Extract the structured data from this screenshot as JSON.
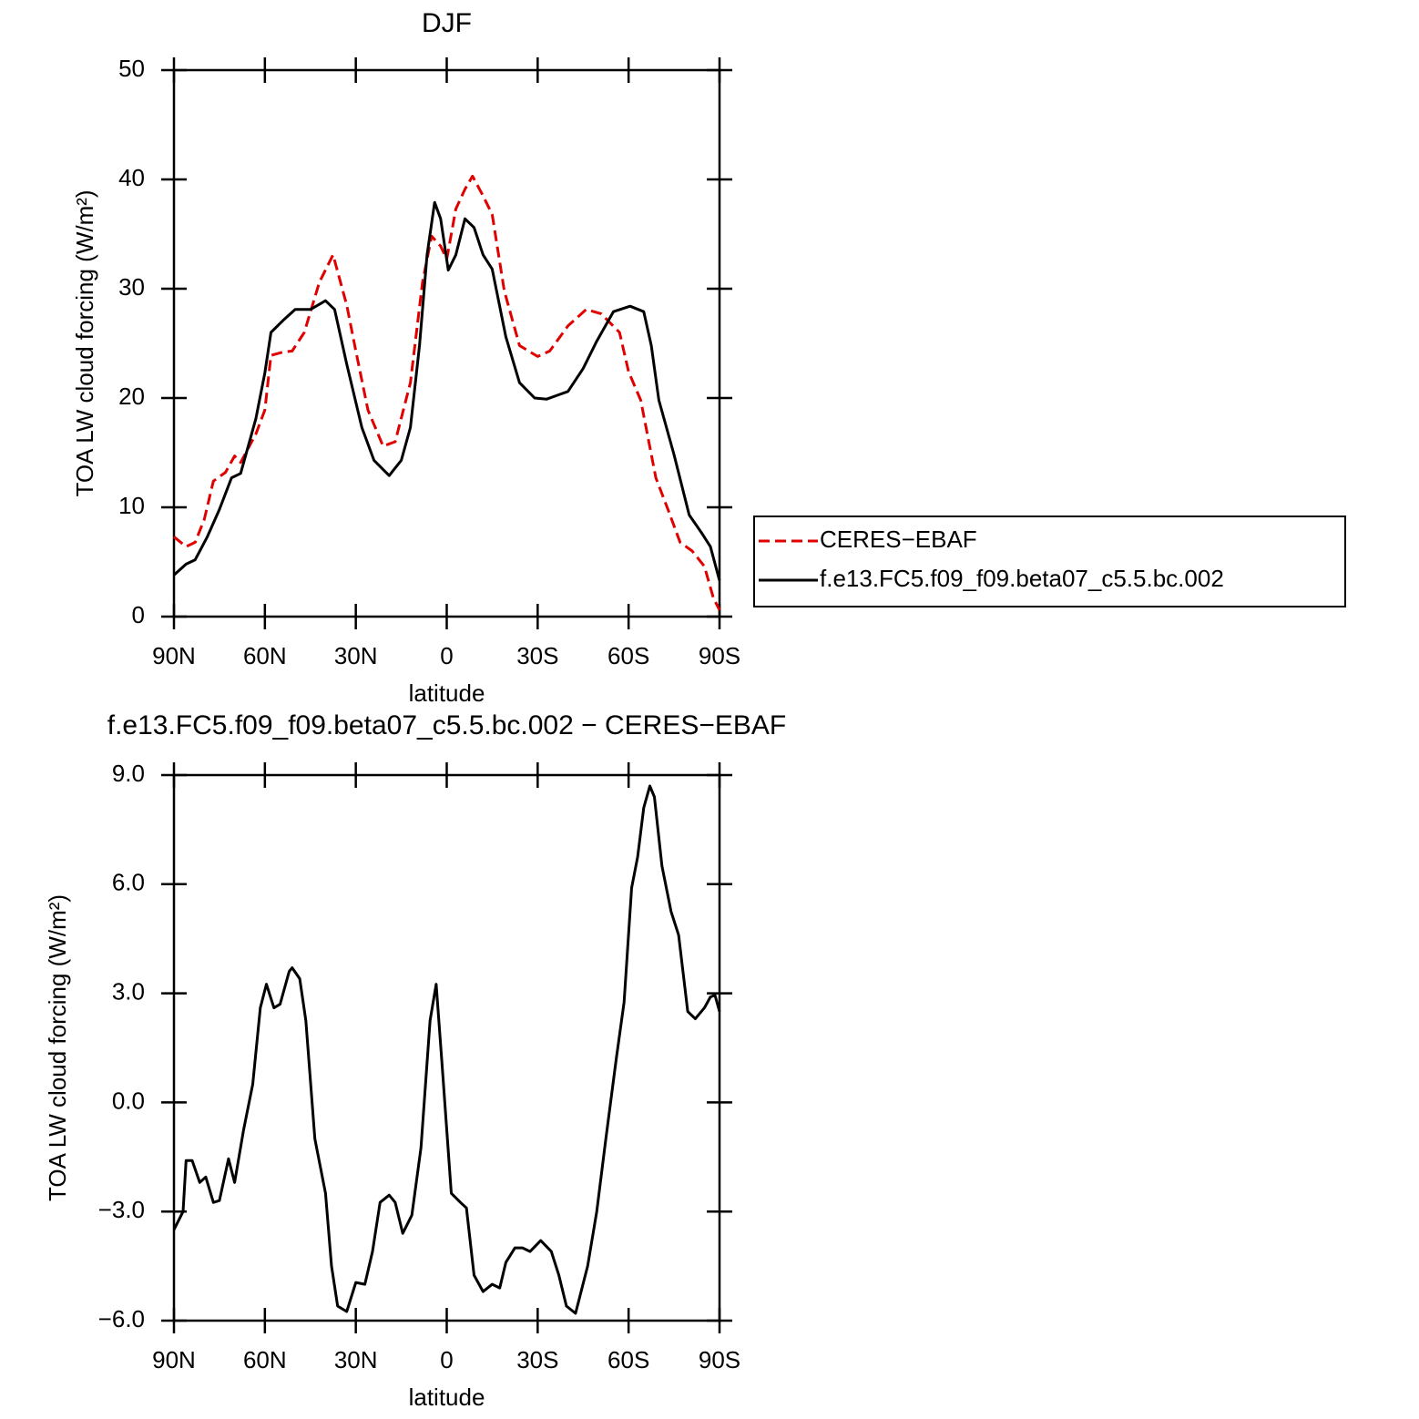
{
  "chart_data": [
    {
      "type": "line",
      "title": "DJF",
      "xlabel": "latitude",
      "ylabel": "TOA LW cloud forcing (W/m²)",
      "xlim": [
        90,
        -90
      ],
      "xticks": [
        {
          "value": 90,
          "label": "90N"
        },
        {
          "value": 60,
          "label": "60N"
        },
        {
          "value": 30,
          "label": "30N"
        },
        0,
        {
          "value": -30,
          "label": "30S"
        },
        {
          "value": -60,
          "label": "60S"
        },
        {
          "value": -90,
          "label": "90S"
        }
      ],
      "ylim": [
        0,
        50
      ],
      "yticks": [
        0,
        10,
        20,
        30,
        40,
        50
      ],
      "legend": "right",
      "series": [
        {
          "name": "CERES−EBAF",
          "color": "#e00000",
          "line_style": "dashed",
          "x": [
            90,
            86,
            83,
            80,
            77,
            73,
            70,
            68,
            63,
            60,
            58,
            54,
            51,
            47,
            42,
            37.5,
            33,
            30,
            26,
            21,
            17,
            12,
            8,
            5,
            2,
            0,
            -3,
            -6,
            -8.5,
            -12,
            -15,
            -19,
            -24,
            -30,
            -34,
            -40,
            -46,
            -51,
            -57,
            -60,
            -64,
            -69,
            -73,
            -77,
            -81,
            -85,
            -88,
            -90
          ],
          "values": [
            7.3,
            6.4,
            6.8,
            8.9,
            12.4,
            13.2,
            14.7,
            14.1,
            16.7,
            18.9,
            23.9,
            24.2,
            24.3,
            26,
            30.6,
            33.1,
            28.5,
            24.3,
            18.9,
            15.6,
            16,
            21.4,
            30.6,
            34.8,
            33.9,
            32.7,
            37.3,
            39.1,
            40.3,
            38.5,
            36.8,
            29.8,
            24.8,
            23.8,
            24.3,
            26.6,
            28.1,
            27.7,
            26,
            22.4,
            19.8,
            12.7,
            9.8,
            6.8,
            6,
            4.6,
            1.7,
            0.6
          ]
        },
        {
          "name": "f.e13.FC5.f09_f09.beta07_c5.5.bc.002",
          "color": "#000000",
          "line_style": "solid",
          "x": [
            90,
            86,
            83,
            79,
            75,
            71,
            68,
            63,
            60,
            58,
            54,
            50,
            45,
            40,
            37,
            33,
            28,
            24,
            19,
            15,
            12,
            9,
            6.5,
            4,
            2,
            -0.5,
            -3,
            -6,
            -9,
            -12,
            -15,
            -19.5,
            -24,
            -29,
            -33,
            -37,
            -40,
            -45,
            -49.5,
            -55,
            -60.5,
            -65,
            -67.5,
            -70,
            -75,
            -80,
            -84,
            -87,
            -90
          ],
          "values": [
            3.8,
            4.8,
            5.2,
            7.3,
            9.8,
            12.7,
            13.1,
            18.1,
            22.3,
            26,
            27.1,
            28.1,
            28.1,
            28.9,
            28.1,
            23.1,
            17.3,
            14.3,
            12.9,
            14.3,
            17.3,
            24.8,
            33.1,
            37.9,
            36.4,
            31.7,
            33.1,
            36.4,
            35.6,
            33.1,
            31.8,
            25.6,
            21.4,
            20,
            19.9,
            20.3,
            20.6,
            22.7,
            25.2,
            27.9,
            28.4,
            27.9,
            24.8,
            19.8,
            14.8,
            9.3,
            7.7,
            6.4,
            3.3
          ]
        }
      ]
    },
    {
      "type": "line",
      "title": "f.e13.FC5.f09_f09.beta07_c5.5.bc.002 − CERES−EBAF",
      "xlabel": "latitude",
      "ylabel": "TOA LW cloud forcing (W/m²)",
      "xlim": [
        90,
        -90
      ],
      "xticks": [
        {
          "value": 90,
          "label": "90N"
        },
        {
          "value": 60,
          "label": "60N"
        },
        {
          "value": 30,
          "label": "30N"
        },
        0,
        {
          "value": -30,
          "label": "30S"
        },
        {
          "value": -60,
          "label": "60S"
        },
        {
          "value": -90,
          "label": "90S"
        }
      ],
      "ylim": [
        -6,
        9
      ],
      "yticks": [
        {
          "value": -6,
          "label": "−6.0"
        },
        {
          "value": -3,
          "label": "−3.0"
        },
        {
          "value": 0,
          "label": "0.0"
        },
        {
          "value": 3,
          "label": "3.0"
        },
        {
          "value": 6,
          "label": "6.0"
        },
        {
          "value": 9,
          "label": "9.0"
        }
      ],
      "series": [
        {
          "color": "#000000",
          "line_style": "solid",
          "x": [
            90,
            87,
            86,
            84,
            81.5,
            79.5,
            77,
            75,
            72,
            70,
            67,
            64,
            61.5,
            59.5,
            57,
            55,
            52,
            51,
            48.5,
            46.5,
            43.5,
            40,
            38,
            36,
            33,
            30,
            27,
            24.5,
            22,
            19,
            17,
            14.5,
            11.5,
            8.5,
            5.5,
            3.5,
            1.5,
            -1.5,
            -4.5,
            -6.5,
            -9,
            -12,
            -15,
            -17.5,
            -19.5,
            -22.5,
            -25,
            -27.5,
            -31,
            -34.5,
            -37,
            -39.5,
            -42.5,
            -46.5,
            -49.5,
            -52.5,
            -56,
            -58.5,
            -61,
            -63,
            -65,
            -67,
            -68.5,
            -71,
            -74,
            -76.5,
            -79.5,
            -82,
            -85,
            -87,
            -88.5,
            -90
          ],
          "values": [
            -3.5,
            -3.0,
            -1.6,
            -1.6,
            -2.2,
            -2.05,
            -2.75,
            -2.7,
            -1.55,
            -2.2,
            -0.75,
            0.5,
            2.6,
            3.25,
            2.6,
            2.7,
            3.6,
            3.7,
            3.4,
            2.25,
            -1.0,
            -2.5,
            -4.5,
            -5.6,
            -5.75,
            -4.95,
            -5.0,
            -4.1,
            -2.75,
            -2.55,
            -2.75,
            -3.6,
            -3.1,
            -1.25,
            2.25,
            3.25,
            1.0,
            -2.5,
            -2.75,
            -2.9,
            -4.75,
            -5.2,
            -5.0,
            -5.1,
            -4.4,
            -4.0,
            -4.0,
            -4.1,
            -3.8,
            -4.1,
            -4.75,
            -5.6,
            -5.8,
            -4.5,
            -3.0,
            -1.0,
            1.25,
            2.75,
            5.9,
            6.75,
            8.1,
            8.7,
            8.4,
            6.5,
            5.25,
            4.6,
            2.5,
            2.3,
            2.6,
            2.9,
            2.95,
            2.5
          ]
        }
      ]
    }
  ]
}
